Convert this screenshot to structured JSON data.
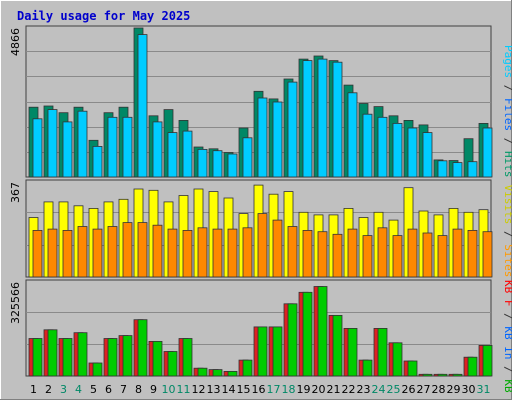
{
  "chart_data": {
    "type": "bar",
    "title": "Daily usage for May 2025",
    "x": [
      "1",
      "2",
      "3",
      "4",
      "5",
      "6",
      "7",
      "8",
      "9",
      "10",
      "11",
      "12",
      "13",
      "14",
      "15",
      "16",
      "17",
      "18",
      "19",
      "20",
      "21",
      "22",
      "23",
      "24",
      "25",
      "26",
      "27",
      "28",
      "29",
      "30",
      "31"
    ],
    "weekend_days": [
      "3",
      "4",
      "10",
      "11",
      "17",
      "18",
      "24",
      "25",
      "31"
    ],
    "panels": [
      {
        "name": "top",
        "ymax_label": "4866",
        "ylim": [
          0,
          4866
        ],
        "legend": [
          {
            "text": "Pages",
            "color": "#00ccff"
          },
          {
            "text": " / ",
            "color": "#333333"
          },
          {
            "text": "Files",
            "color": "#0066ff"
          },
          {
            "text": " / ",
            "color": "#333333"
          },
          {
            "text": "Hits",
            "color": "#009966"
          }
        ],
        "series": [
          {
            "name": "Hits",
            "color": "#008866",
            "values": [
              2280,
              2320,
              2100,
              2280,
              1200,
              2100,
              2280,
              4866,
              2000,
              2200,
              1850,
              980,
              920,
              800,
              1600,
              2800,
              2550,
              3200,
              3850,
              3950,
              3800,
              3000,
              2400,
              2300,
              2000,
              1850,
              1700,
              560,
              540,
              1250,
              1750
            ]
          },
          {
            "name": "Files",
            "color": "#00ccff",
            "values": [
              1900,
              2200,
              1800,
              2150,
              1000,
              1950,
              1950,
              4650,
              1800,
              1450,
              1500,
              900,
              860,
              750,
              1280,
              2580,
              2450,
              3100,
              3800,
              3850,
              3750,
              2750,
              2050,
              1950,
              1750,
              1600,
              1450,
              530,
              470,
              500,
              1600
            ]
          }
        ]
      },
      {
        "name": "middle",
        "ymax_label": "367",
        "ylim": [
          0,
          367
        ],
        "legend": [
          {
            "text": "Visits",
            "color": "#cccc00"
          },
          {
            "text": " / ",
            "color": "#333333"
          },
          {
            "text": "Sites",
            "color": "#ff9900"
          }
        ],
        "series": [
          {
            "name": "Visits",
            "color": "#ffff00",
            "values": [
              230,
              290,
              290,
              275,
              265,
              290,
              300,
              340,
              335,
              290,
              315,
              340,
              330,
              305,
              245,
              355,
              320,
              330,
              250,
              240,
              240,
              265,
              230,
              250,
              220,
              345,
              255,
              240,
              265,
              250,
              260
            ]
          },
          {
            "name": "Sites",
            "color": "#ff8800",
            "values": [
              180,
              185,
              180,
              195,
              185,
              195,
              210,
              210,
              200,
              185,
              180,
              190,
              185,
              185,
              190,
              245,
              220,
              195,
              180,
              175,
              165,
              185,
              160,
              190,
              160,
              185,
              170,
              160,
              185,
              180,
              175
            ]
          }
        ]
      },
      {
        "name": "bottom",
        "ymax_label": "325566",
        "ylim": [
          0,
          325566
        ],
        "legend": [
          {
            "text": "KB F",
            "color": "#ff0000"
          },
          {
            "text": " / ",
            "color": "#333333"
          },
          {
            "text": "KB In",
            "color": "#0066ff"
          },
          {
            "text": " / ",
            "color": "#333333"
          },
          {
            "text": "KB Out",
            "color": "#00aa00"
          }
        ],
        "series": [
          {
            "name": "KB F",
            "color": "#dd2222",
            "values": [
              130000,
              160000,
              130000,
              150000,
              45000,
              130000,
              140000,
              195000,
              120000,
              85000,
              130000,
              27000,
              22000,
              16000,
              55000,
              170000,
              170000,
              250000,
              290000,
              310000,
              210000,
              165000,
              55000,
              165000,
              115000,
              52000,
              6000,
              6000,
              6000,
              65000,
              106000
            ]
          },
          {
            "name": "KB Out",
            "color": "#00cc00",
            "values": [
              130000,
              160000,
              130000,
              150000,
              45000,
              130000,
              140000,
              195000,
              120000,
              85000,
              130000,
              27000,
              22000,
              16000,
              55000,
              170000,
              170000,
              250000,
              290000,
              310000,
              210000,
              165000,
              55000,
              165000,
              115000,
              52000,
              6000,
              6000,
              6000,
              65000,
              106000
            ]
          }
        ]
      }
    ]
  }
}
